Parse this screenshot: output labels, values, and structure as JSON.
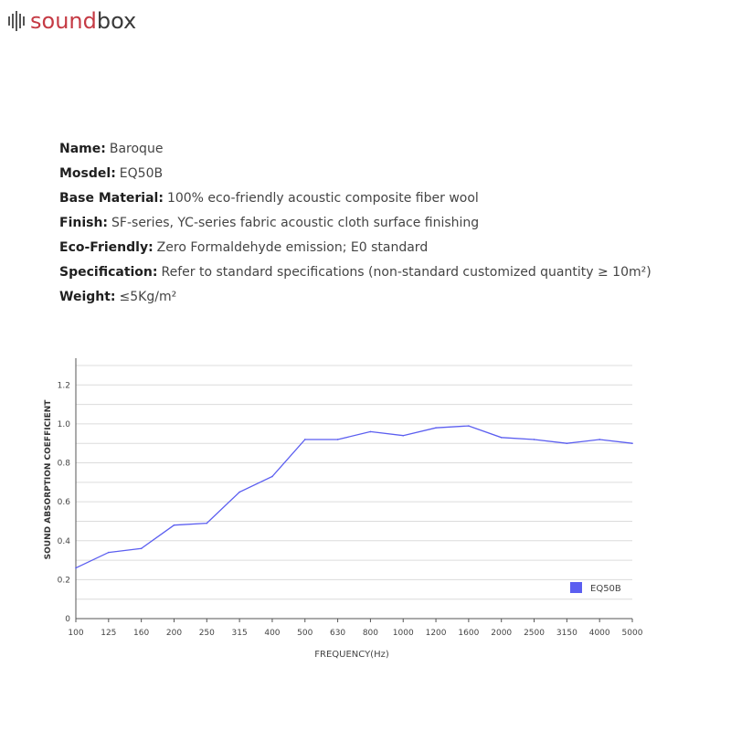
{
  "brand": {
    "sound": "sound",
    "box": "box"
  },
  "specs": [
    {
      "label": "Name:",
      "value": "Baroque"
    },
    {
      "label": "Mosdel:",
      "value": "EQ50B"
    },
    {
      "label": "Base Material:",
      "value": "100% eco-friendly acoustic composite fiber wool"
    },
    {
      "label": "Finish:",
      "value": "SF-series, YC-series fabric acoustic cloth surface finishing"
    },
    {
      "label": "Eco-Friendly:",
      "value": "Zero Formaldehyde emission; E0 standard"
    },
    {
      "label": "Specification:",
      "value": "Refer to standard specifications (non-standard customized quantity ≥ 10m²)"
    },
    {
      "label": "Weight:",
      "value": "≤5Kg/m²"
    }
  ],
  "chart_data": {
    "type": "line",
    "xlabel": "FREQUENCY(Hz)",
    "ylabel": "SOUND ABSORPTION COEFFICIENT",
    "categories": [
      "100",
      "125",
      "160",
      "200",
      "250",
      "315",
      "400",
      "500",
      "630",
      "800",
      "1000",
      "1200",
      "1600",
      "2000",
      "2500",
      "3150",
      "4000",
      "5000"
    ],
    "series": [
      {
        "name": "EQ50B",
        "values": [
          0.26,
          0.34,
          0.36,
          0.48,
          0.49,
          0.65,
          0.73,
          0.92,
          0.92,
          0.96,
          0.94,
          0.98,
          0.99,
          0.93,
          0.92,
          0.9,
          0.92,
          0.9
        ],
        "color": "#5b5ef0"
      }
    ],
    "yticks": [
      "0",
      "0.2",
      "0.4",
      "0.6",
      "0.8",
      "1.0",
      "1.2"
    ],
    "ylim": [
      0,
      1.3
    ],
    "grid": true,
    "legend": "bottom-right"
  }
}
